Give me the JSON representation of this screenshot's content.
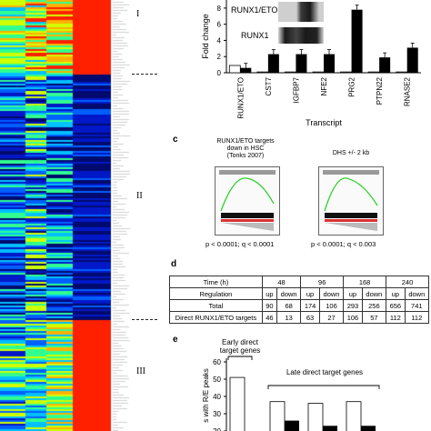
{
  "heatmap": {
    "clusters": [
      "I",
      "II",
      "III"
    ],
    "palette": [
      "#000a6e",
      "#0018c8",
      "#0060ff",
      "#00c0ff",
      "#30ff90",
      "#d0ff00",
      "#ffb000",
      "#ff2000"
    ]
  },
  "panel_b": {
    "ylabel": "Fold change",
    "xlabel": "Transcript",
    "blot_labels": [
      "RUNX1/ETO",
      "RUNX1"
    ],
    "chart_data": {
      "type": "bar",
      "categories": [
        "RUNX1/ETO",
        "CST7",
        "IGFBP7",
        "NFE2",
        "PRG2",
        "PTPN22",
        "RNASE2"
      ],
      "series": [
        {
          "values": [
            0.9,
            0.1,
            0.1,
            0.1,
            0.1,
            0.1,
            0.1
          ]
        },
        {
          "values": [
            0.6,
            2.3,
            2.3,
            2.3,
            7.8,
            1.9,
            3.1
          ]
        }
      ],
      "yticks": [
        0,
        2,
        4,
        6,
        8
      ],
      "ylim": [
        0,
        9
      ]
    }
  },
  "panel_c": {
    "letter": "c",
    "left_title": [
      "RUNX1/ETO targets",
      "down in HSC",
      "(Tonks 2007)"
    ],
    "right_title": [
      "DHS +/- 2 kb"
    ],
    "left_p": "p < 0.0001; q < 0.0001",
    "right_p": "p < 0.0001; q < 0.003"
  },
  "panel_d": {
    "letter": "d",
    "time_label": "Time (h)",
    "times": [
      "48",
      "96",
      "168",
      "240"
    ],
    "regulation_label": "Regulation",
    "directions": [
      "up",
      "down",
      "up",
      "down",
      "up",
      "down",
      "up",
      "down"
    ],
    "rows": [
      {
        "label": "Total",
        "values": [
          "90",
          "68",
          "174",
          "106",
          "293",
          "256",
          "656",
          "741"
        ]
      },
      {
        "label": "Direct RUNX1/ETO targets",
        "values": [
          "46",
          "13",
          "63",
          "27",
          "106",
          "57",
          "112",
          "112"
        ]
      }
    ]
  },
  "panel_e": {
    "letter": "e",
    "ylabel": "s with R/E peaks",
    "early_label": [
      "Early direct",
      "target genes"
    ],
    "late_label": "Late direct target genes",
    "chart_data": {
      "type": "bar",
      "series": [
        {
          "values": [
            51,
            37,
            36,
            37
          ]
        },
        {
          "values": [
            null,
            26,
            23,
            23
          ]
        }
      ],
      "yticks": [
        20,
        30,
        40,
        50,
        60
      ],
      "ylim": [
        20,
        60
      ]
    }
  }
}
